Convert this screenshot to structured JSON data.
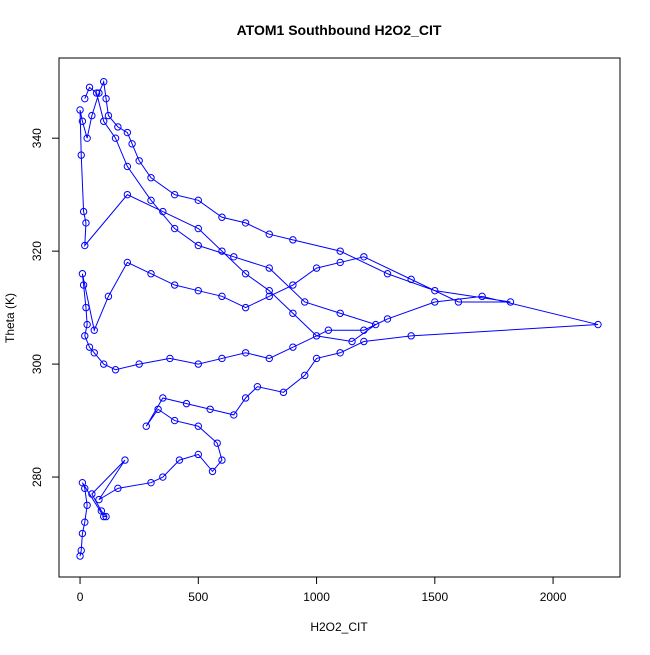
{
  "chart_data": {
    "type": "line",
    "title": "ATOM1 Southbound H2O2_CIT",
    "x_label": "H2O2_CIT",
    "y_label": "Theta (K)",
    "markers": "open-circle",
    "x": [
      0,
      5,
      10,
      20,
      30,
      20,
      10,
      100,
      110,
      90,
      50,
      190,
      80,
      160,
      300,
      350,
      420,
      500,
      560,
      600,
      580,
      500,
      400,
      330,
      280,
      350,
      450,
      550,
      650,
      700,
      750,
      860,
      950,
      1000,
      1100,
      1200,
      1400,
      2190,
      1700,
      1500,
      1300,
      1200,
      1050,
      900,
      800,
      700,
      600,
      500,
      380,
      250,
      150,
      100,
      60,
      40,
      20,
      30,
      25,
      15,
      10,
      60,
      120,
      200,
      300,
      400,
      500,
      600,
      700,
      800,
      900,
      1000,
      1100,
      1200,
      1400,
      1600,
      1820,
      1500,
      1300,
      1100,
      900,
      800,
      700,
      600,
      500,
      400,
      300,
      250,
      220,
      200,
      160,
      120,
      110,
      100,
      80,
      50,
      30,
      10,
      0,
      5,
      15,
      25,
      20,
      200,
      350,
      500,
      600,
      700,
      800,
      900,
      1000,
      1150,
      1250,
      1100,
      950,
      800,
      650,
      500,
      400,
      300,
      200,
      150,
      100,
      70,
      40,
      20
    ],
    "series": [
      {
        "name": "H2O2_CIT",
        "color": "#0000ff",
        "values": [
          266,
          267,
          270,
          272,
          275,
          278,
          279,
          273,
          273,
          274,
          277,
          283,
          276,
          278,
          279,
          280,
          283,
          284,
          281,
          283,
          286,
          289,
          290,
          292,
          289,
          294,
          293,
          292,
          291,
          294,
          296,
          295,
          298,
          301,
          302,
          304,
          305,
          307,
          312,
          311,
          308,
          306,
          306,
          303,
          301,
          302,
          301,
          300,
          301,
          300,
          299,
          300,
          302,
          303,
          305,
          307,
          310,
          314,
          316,
          306,
          312,
          318,
          316,
          314,
          313,
          312,
          310,
          312,
          314,
          317,
          318,
          319,
          315,
          311,
          311,
          313,
          316,
          320,
          322,
          323,
          325,
          326,
          329,
          330,
          333,
          336,
          339,
          341,
          342,
          344,
          347,
          350,
          348,
          344,
          340,
          343,
          345,
          337,
          327,
          325,
          321,
          330,
          327,
          324,
          320,
          316,
          313,
          309,
          305,
          304,
          307,
          309,
          311,
          317,
          319,
          321,
          324,
          329,
          335,
          340,
          343,
          348,
          349,
          347
        ]
      }
    ],
    "xlim": [
      -89,
      2283
    ],
    "ylim": [
      262.3,
      354.2
    ],
    "xticks": [
      0,
      500,
      1000,
      1500,
      2000
    ],
    "yticks": [
      280,
      300,
      320,
      340
    ]
  }
}
